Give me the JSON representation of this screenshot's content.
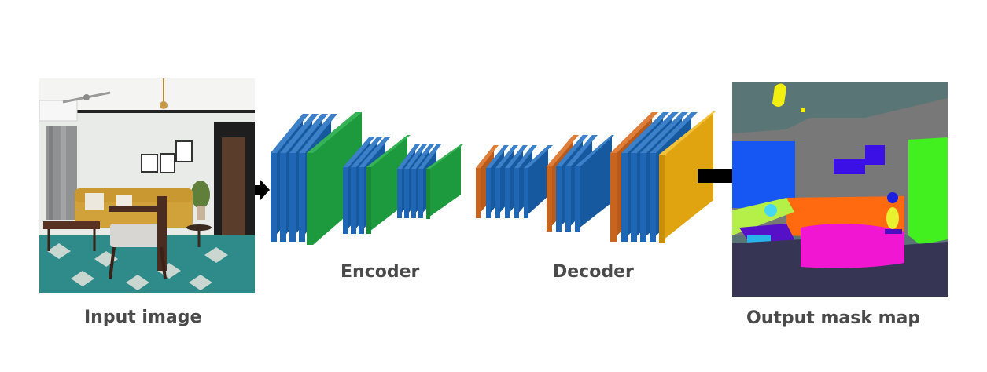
{
  "labels": {
    "input": "Input image",
    "encoder": "Encoder",
    "decoder": "Decoder",
    "output": "Output mask map"
  },
  "colors": {
    "conv": "#1f66b5",
    "encoder_pool": "#1e9a3e",
    "decoder_upsample": "#c8641e",
    "output_layer": "#e0a410",
    "arrow": "#000000"
  },
  "icons": {
    "input": "photo-living-room-icon",
    "output": "segmentation-mask-icon"
  }
}
